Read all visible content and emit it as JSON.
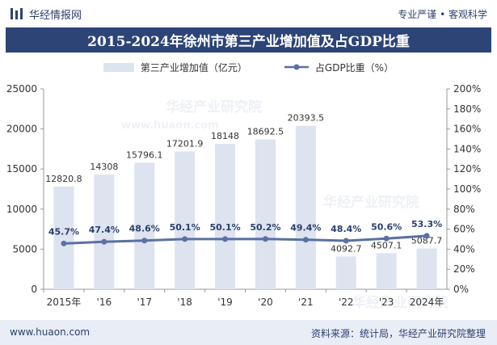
{
  "header": {
    "brand_name": "华经情报网",
    "slogan": "专业严谨 • 客观科学"
  },
  "title": "2015-2024年徐州市第三产业增加值及占GDP比重",
  "legend": {
    "bar_label": "第三产业增加值（亿元）",
    "line_label": "占GDP比重（%）"
  },
  "watermarks": {
    "brand": "华经产业研究院",
    "url": "www.huaon.com"
  },
  "footer": {
    "url": "www.huaon.com",
    "source": "资料来源：统计局，华经产业研究院整理"
  },
  "colors": {
    "bar": "#dde3ef",
    "line": "#5b70a3",
    "title_bg": "#2d4477",
    "footer_bg": "#e9edf5"
  },
  "chart_data": {
    "type": "bar+line",
    "categories": [
      "2015年",
      "'16",
      "'17",
      "'18",
      "'19",
      "'20",
      "'21",
      "'22",
      "'23",
      "2024年"
    ],
    "series": [
      {
        "name": "第三产业增加值（亿元）",
        "type": "bar",
        "axis": "left",
        "values": [
          12820.8,
          14308,
          15796.1,
          17201.9,
          18148,
          18692.5,
          20393.5,
          4092.7,
          4507.1,
          5087.7
        ],
        "labels": [
          "12820.8",
          "14308",
          "15796.1",
          "17201.9",
          "18148",
          "18692.5",
          "20393.5",
          "4092.7",
          "4507.1",
          "5087.7"
        ]
      },
      {
        "name": "占GDP比重（%）",
        "type": "line",
        "axis": "right",
        "values": [
          45.7,
          47.4,
          48.6,
          50.1,
          50.1,
          50.2,
          49.4,
          48.4,
          50.6,
          53.3
        ],
        "labels": [
          "45.7%",
          "47.4%",
          "48.6%",
          "50.1%",
          "50.1%",
          "50.2%",
          "49.4%",
          "48.4%",
          "50.6%",
          "53.3%"
        ]
      }
    ],
    "y_left": {
      "min": 0,
      "max": 25000,
      "ticks": [
        "0",
        "5000",
        "10000",
        "15000",
        "20000",
        "25000"
      ]
    },
    "y_right": {
      "min": 0,
      "max": 200,
      "ticks": [
        "0%",
        "20%",
        "40%",
        "60%",
        "80%",
        "100%",
        "120%",
        "140%",
        "160%",
        "180%",
        "200%"
      ]
    },
    "grid": false
  }
}
